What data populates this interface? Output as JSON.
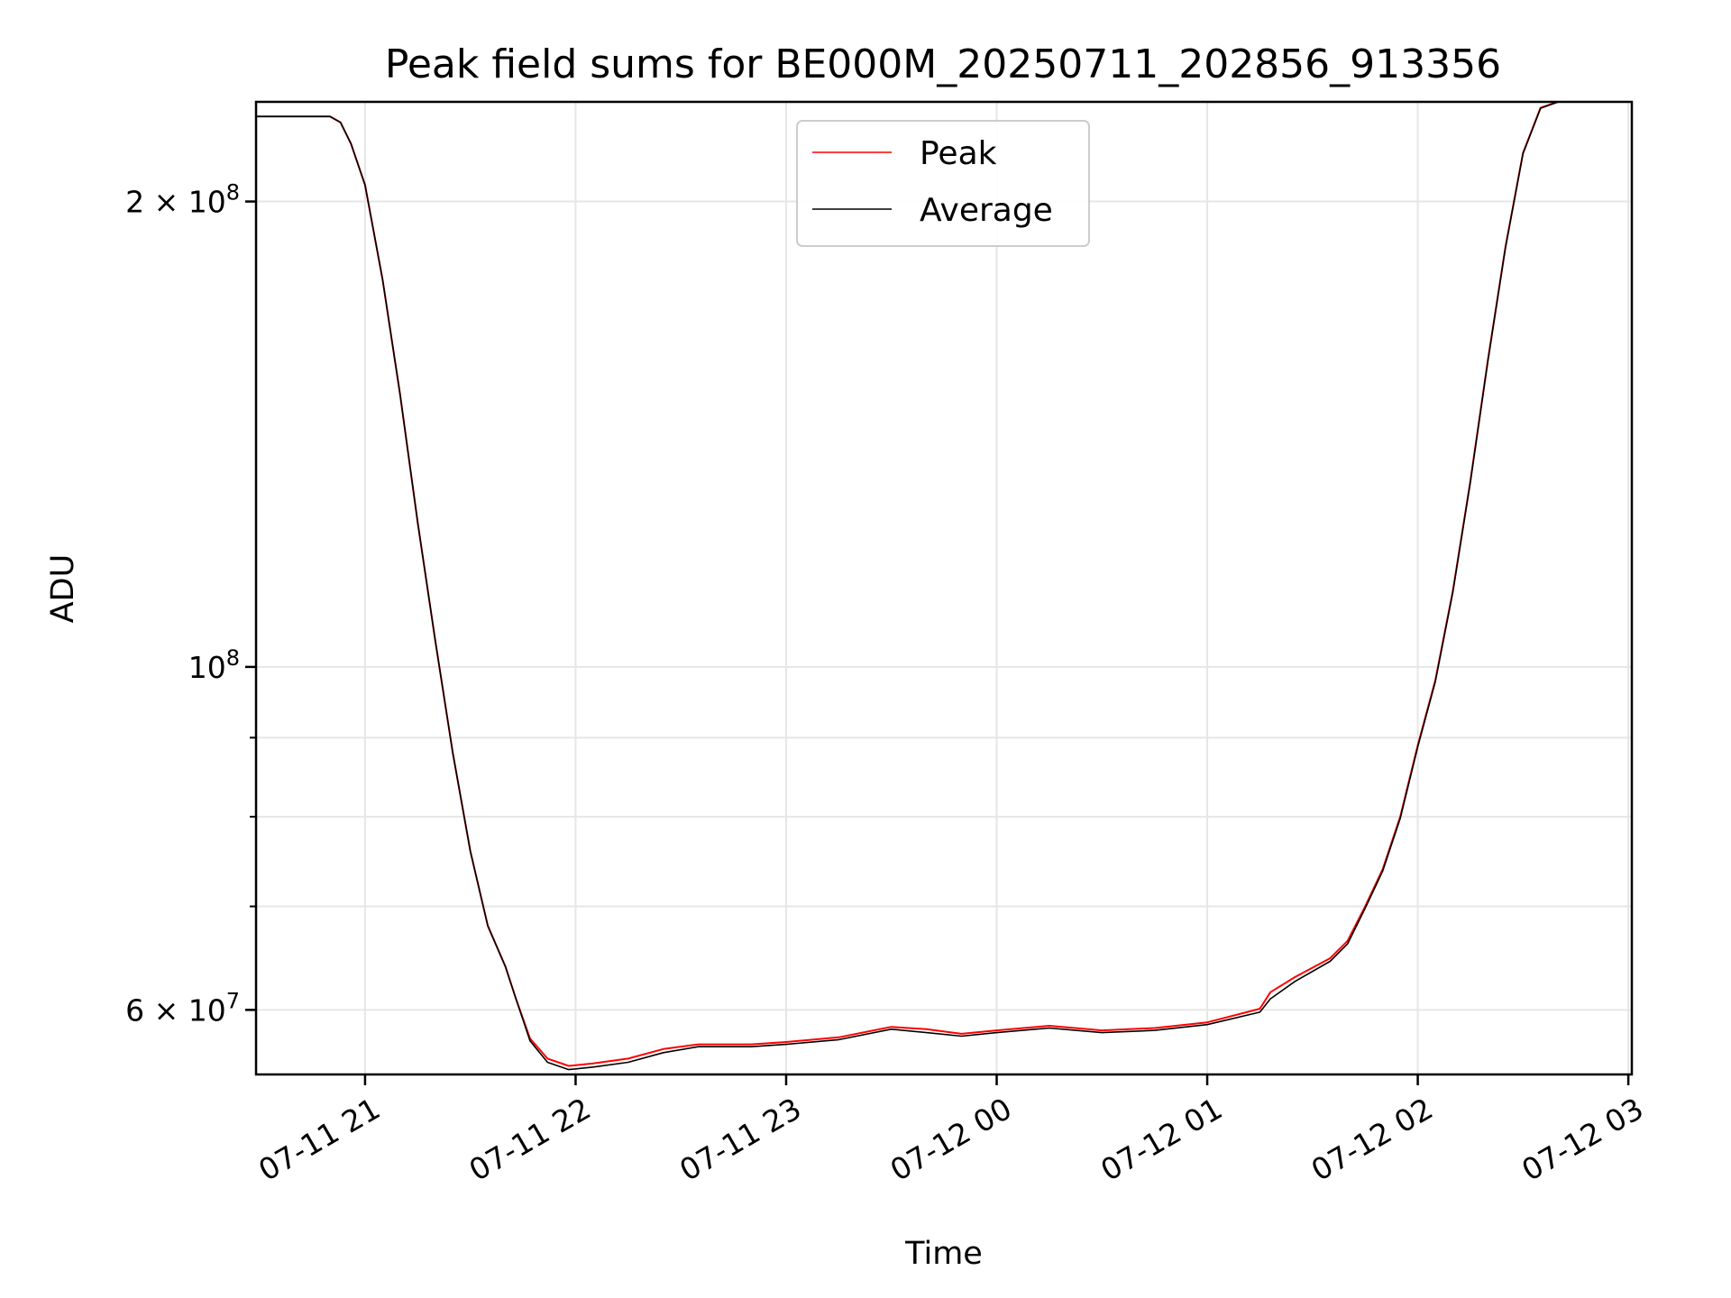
{
  "chart_data": {
    "type": "line",
    "title": "Peak field sums for BE000M_20250711_202856_913356",
    "xlabel": "Time",
    "ylabel": "ADU",
    "yscale": "log",
    "ylim": [
      54500000,
      232000000
    ],
    "xlim": [
      "2025-07-11 20:28:56",
      "2025-07-12 03:01:00"
    ],
    "grid": true,
    "legend_position": "upper center",
    "x_ticks": [
      {
        "label": "07-11 21",
        "time": "2025-07-11 21:00"
      },
      {
        "label": "07-11 22",
        "time": "2025-07-11 22:00"
      },
      {
        "label": "07-11 23",
        "time": "2025-07-11 23:00"
      },
      {
        "label": "07-12 00",
        "time": "2025-07-12 00:00"
      },
      {
        "label": "07-12 01",
        "time": "2025-07-12 01:00"
      },
      {
        "label": "07-12 02",
        "time": "2025-07-12 02:00"
      },
      {
        "label": "07-12 03",
        "time": "2025-07-12 03:00"
      }
    ],
    "y_ticks_major": [
      {
        "mantissa": "2",
        "exp": "8",
        "value": 200000000
      },
      {
        "mantissa": "",
        "exp": "8",
        "value": 100000000
      },
      {
        "mantissa": "6",
        "exp": "7",
        "value": 60000000
      }
    ],
    "y_ticks_minor": [
      70000000,
      80000000,
      90000000
    ],
    "series": [
      {
        "name": "Peak",
        "color": "#ff0000",
        "x": [
          "2025-07-11 20:28:56",
          "2025-07-11 20:50:00",
          "2025-07-11 20:53:00",
          "2025-07-11 20:56:00",
          "2025-07-11 21:00:00",
          "2025-07-11 21:05:00",
          "2025-07-11 21:10:00",
          "2025-07-11 21:15:00",
          "2025-07-11 21:20:00",
          "2025-07-11 21:25:00",
          "2025-07-11 21:30:00",
          "2025-07-11 21:35:00",
          "2025-07-11 21:40:00",
          "2025-07-11 21:43:00",
          "2025-07-11 21:47:00",
          "2025-07-11 21:52:00",
          "2025-07-11 21:58:00",
          "2025-07-11 22:05:00",
          "2025-07-11 22:15:00",
          "2025-07-11 22:25:00",
          "2025-07-11 22:35:00",
          "2025-07-11 22:50:00",
          "2025-07-11 23:00:00",
          "2025-07-11 23:15:00",
          "2025-07-11 23:30:00",
          "2025-07-11 23:40:00",
          "2025-07-11 23:50:00",
          "2025-07-12 00:00:00",
          "2025-07-12 00:15:00",
          "2025-07-12 00:30:00",
          "2025-07-12 00:45:00",
          "2025-07-12 01:00:00",
          "2025-07-12 01:15:00",
          "2025-07-12 01:18:00",
          "2025-07-12 01:25:00",
          "2025-07-12 01:35:00",
          "2025-07-12 01:40:00",
          "2025-07-12 01:45:00",
          "2025-07-12 01:50:00",
          "2025-07-12 01:55:00",
          "2025-07-12 02:00:00",
          "2025-07-12 02:05:00",
          "2025-07-12 02:10:00",
          "2025-07-12 02:15:00",
          "2025-07-12 02:20:00",
          "2025-07-12 02:25:00",
          "2025-07-12 02:30:00",
          "2025-07-12 02:35:00",
          "2025-07-12 02:40:00",
          "2025-07-12 03:01:00"
        ],
        "y": [
          227000000,
          227000000,
          225000000,
          218000000,
          205000000,
          178000000,
          150000000,
          124000000,
          104000000,
          88000000,
          76000000,
          68000000,
          64000000,
          61000000,
          57500000,
          55800000,
          55200000,
          55400000,
          55800000,
          56600000,
          57000000,
          57000000,
          57200000,
          57600000,
          58500000,
          58300000,
          57900000,
          58200000,
          58600000,
          58200000,
          58400000,
          58900000,
          60100000,
          61600000,
          63000000,
          64800000,
          66500000,
          70000000,
          74000000,
          80000000,
          89000000,
          98000000,
          112000000,
          132000000,
          158000000,
          187000000,
          215000000,
          230000000,
          232000000,
          232000000
        ]
      },
      {
        "name": "Average",
        "color": "#000000",
        "x": [
          "2025-07-11 20:28:56",
          "2025-07-11 20:50:00",
          "2025-07-11 20:53:00",
          "2025-07-11 20:56:00",
          "2025-07-11 21:00:00",
          "2025-07-11 21:05:00",
          "2025-07-11 21:10:00",
          "2025-07-11 21:15:00",
          "2025-07-11 21:20:00",
          "2025-07-11 21:25:00",
          "2025-07-11 21:30:00",
          "2025-07-11 21:35:00",
          "2025-07-11 21:40:00",
          "2025-07-11 21:43:00",
          "2025-07-11 21:47:00",
          "2025-07-11 21:52:00",
          "2025-07-11 21:58:00",
          "2025-07-11 22:05:00",
          "2025-07-11 22:15:00",
          "2025-07-11 22:25:00",
          "2025-07-11 22:35:00",
          "2025-07-11 22:50:00",
          "2025-07-11 23:00:00",
          "2025-07-11 23:15:00",
          "2025-07-11 23:30:00",
          "2025-07-11 23:40:00",
          "2025-07-11 23:50:00",
          "2025-07-12 00:00:00",
          "2025-07-12 00:15:00",
          "2025-07-12 00:30:00",
          "2025-07-12 00:45:00",
          "2025-07-12 01:00:00",
          "2025-07-12 01:15:00",
          "2025-07-12 01:18:00",
          "2025-07-12 01:25:00",
          "2025-07-12 01:35:00",
          "2025-07-12 01:40:00",
          "2025-07-12 01:45:00",
          "2025-07-12 01:50:00",
          "2025-07-12 01:55:00",
          "2025-07-12 02:00:00",
          "2025-07-12 02:05:00",
          "2025-07-12 02:10:00",
          "2025-07-12 02:15:00",
          "2025-07-12 02:20:00",
          "2025-07-12 02:25:00",
          "2025-07-12 02:30:00",
          "2025-07-12 02:35:00",
          "2025-07-12 02:40:00",
          "2025-07-12 03:01:00"
        ],
        "y": [
          227000000,
          227000000,
          225000000,
          218000000,
          205000000,
          178000000,
          150000000,
          124000000,
          104000000,
          88000000,
          76000000,
          68000000,
          64000000,
          61000000,
          57300000,
          55500000,
          54900000,
          55100000,
          55500000,
          56300000,
          56800000,
          56800000,
          57000000,
          57400000,
          58300000,
          58000000,
          57700000,
          58000000,
          58400000,
          58000000,
          58200000,
          58700000,
          59800000,
          61000000,
          62600000,
          64500000,
          66200000,
          69800000,
          73800000,
          79800000,
          88800000,
          97800000,
          111800000,
          131800000,
          157800000,
          186800000,
          214800000,
          229800000,
          232000000,
          232000000
        ]
      }
    ]
  }
}
